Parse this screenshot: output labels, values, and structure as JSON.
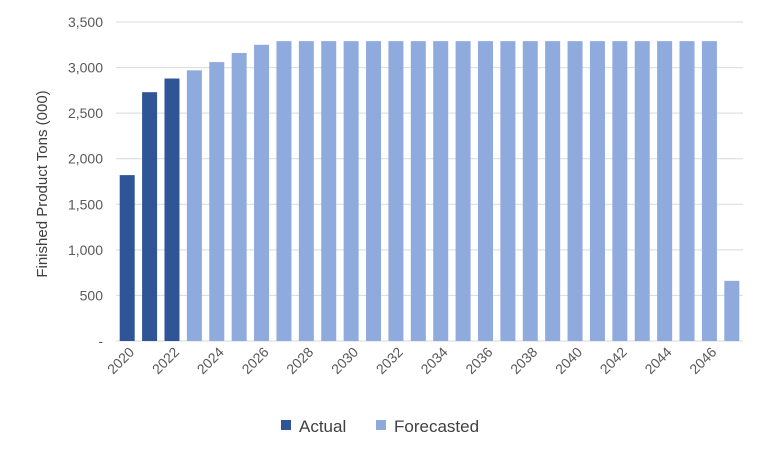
{
  "chart_data": {
    "type": "bar",
    "ylabel": "Finished Product Tons (000)",
    "xlabel": "",
    "title": "",
    "ylim": [
      0,
      3500
    ],
    "y_ticks": [
      {
        "value": 0,
        "label": "-"
      },
      {
        "value": 500,
        "label": "500"
      },
      {
        "value": 1000,
        "label": "1,000"
      },
      {
        "value": 1500,
        "label": "1,500"
      },
      {
        "value": 2000,
        "label": "2,000"
      },
      {
        "value": 2500,
        "label": "2,500"
      },
      {
        "value": 3000,
        "label": "3,000"
      },
      {
        "value": 3500,
        "label": "3,500"
      }
    ],
    "x_tick_labels": [
      "2020",
      "2022",
      "2024",
      "2026",
      "2028",
      "2030",
      "2032",
      "2034",
      "2036",
      "2038",
      "2040",
      "2042",
      "2044",
      "2046"
    ],
    "grid": true,
    "legend_position": "bottom",
    "categories": [
      2020,
      2021,
      2022,
      2023,
      2024,
      2025,
      2026,
      2027,
      2028,
      2029,
      2030,
      2031,
      2032,
      2033,
      2034,
      2035,
      2036,
      2037,
      2038,
      2039,
      2040,
      2041,
      2042,
      2043,
      2044,
      2045,
      2046,
      2047
    ],
    "series": [
      {
        "name": "Actual",
        "color": "#2f5597",
        "values": [
          1820,
          2730,
          2880,
          null,
          null,
          null,
          null,
          null,
          null,
          null,
          null,
          null,
          null,
          null,
          null,
          null,
          null,
          null,
          null,
          null,
          null,
          null,
          null,
          null,
          null,
          null,
          null,
          null
        ]
      },
      {
        "name": "Forecasted",
        "color": "#8faadc",
        "values": [
          null,
          null,
          null,
          2970,
          3060,
          3160,
          3250,
          3290,
          3290,
          3290,
          3290,
          3290,
          3290,
          3290,
          3290,
          3290,
          3290,
          3290,
          3290,
          3290,
          3290,
          3290,
          3290,
          3290,
          3290,
          3290,
          3290,
          660
        ]
      }
    ]
  }
}
